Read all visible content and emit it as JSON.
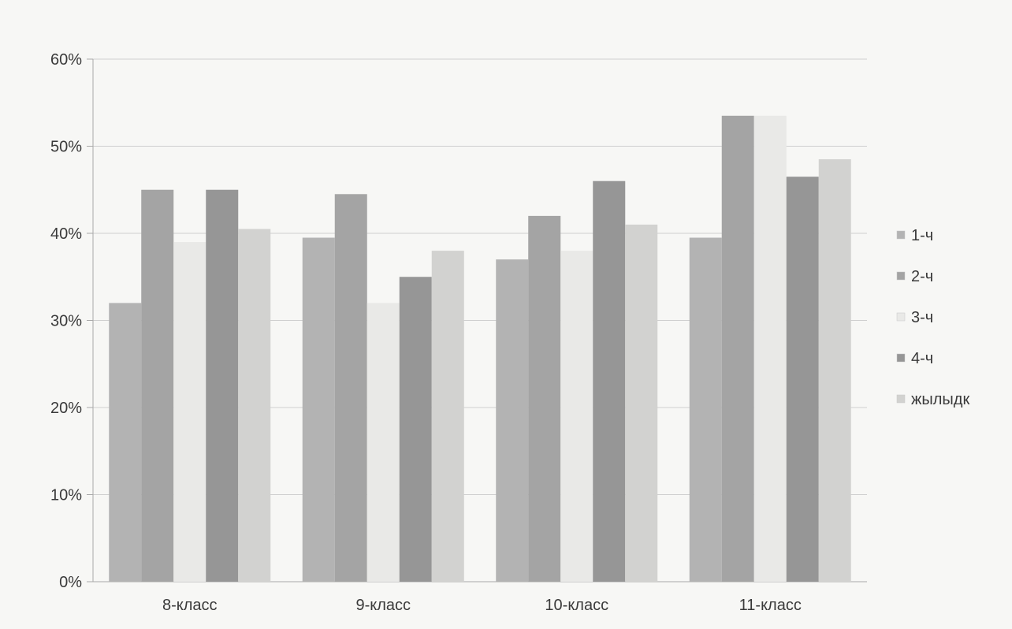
{
  "chart_data": {
    "type": "bar",
    "title": "",
    "xlabel": "",
    "ylabel": "",
    "categories": [
      "8-класс",
      "9-класс",
      "10-класс",
      "11-класс"
    ],
    "y_ticks": [
      "0%",
      "10%",
      "20%",
      "30%",
      "40%",
      "50%",
      "60%"
    ],
    "ylim": [
      0,
      60
    ],
    "y_unit": "%",
    "grid": true,
    "legend_position": "right",
    "series": [
      {
        "name": "1-ч",
        "color": "#b3b3b3",
        "values": [
          32,
          39.5,
          37,
          39.5
        ]
      },
      {
        "name": "2-ч",
        "color": "#a4a4a4",
        "values": [
          45,
          44.5,
          42,
          53.5
        ]
      },
      {
        "name": "3-ч",
        "color": "#e9e9e7",
        "values": [
          39,
          32,
          38,
          53.5
        ]
      },
      {
        "name": "4-ч",
        "color": "#969696",
        "values": [
          45,
          35,
          46,
          46.5
        ]
      },
      {
        "name": "жылыдк",
        "color": "#d2d2d0",
        "values": [
          40.5,
          38,
          41,
          48.5
        ]
      }
    ]
  }
}
